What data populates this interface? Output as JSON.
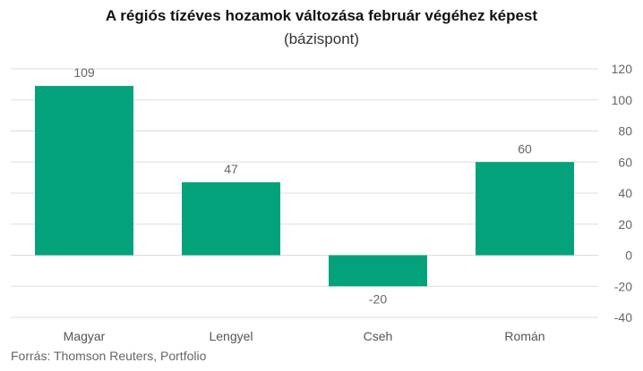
{
  "title": "A régiós tízéves hozamok változása február végéhez képest",
  "subtitle": "(bázispont)",
  "source": "Forrás: Thomson Reuters, Portfolio",
  "colors": {
    "bar": "#03a27b",
    "grid": "#dddddd",
    "text": "#666666"
  },
  "chart_data": {
    "type": "bar",
    "title": "A régiós tízéves hozamok változása február végéhez képest",
    "subtitle": "(bázispont)",
    "categories": [
      "Magyar",
      "Lengyel",
      "Cseh",
      "Román"
    ],
    "values": [
      109,
      47,
      -20,
      60
    ],
    "data_labels": [
      "109",
      "47",
      "-20",
      "60"
    ],
    "xlabel": "",
    "ylabel": "",
    "ylim": [
      -40,
      120
    ],
    "yticks": [
      120,
      100,
      80,
      60,
      40,
      20,
      0,
      -20,
      -40
    ],
    "y_axis_side": "right",
    "grid": true,
    "legend": "none"
  }
}
